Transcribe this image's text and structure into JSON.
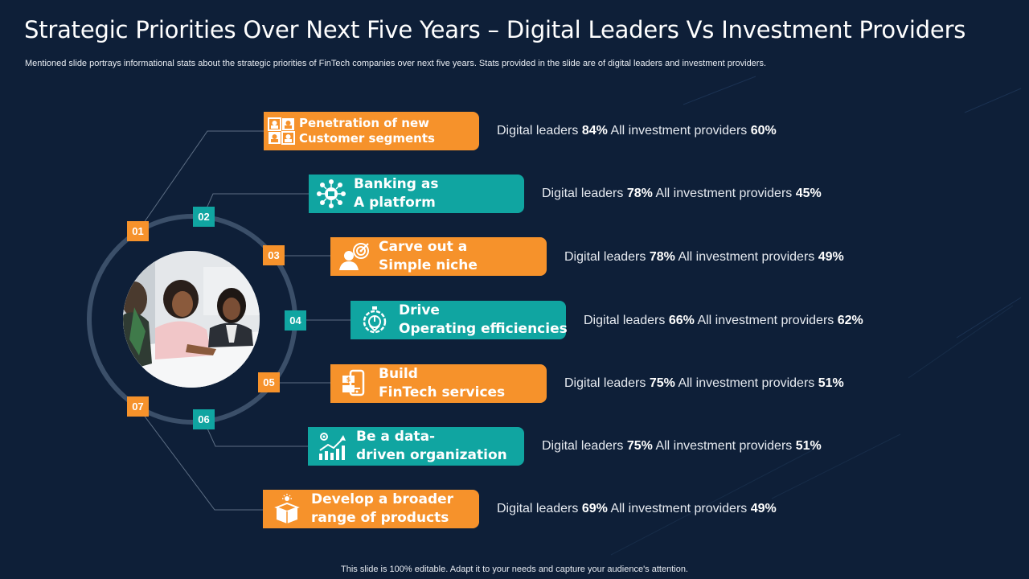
{
  "title": "Strategic Priorities Over Next Five Years – Digital Leaders Vs Investment Providers",
  "subtitle": "Mentioned slide portrays informational stats about the strategic priorities of FinTech companies over next five years. Stats provided in the slide are of digital leaders and investment providers.",
  "footer": "This slide is 100% editable. Adapt it to your needs and capture your audience's attention.",
  "stat_labels": {
    "leaders": "Digital leaders",
    "providers": "All investment  providers"
  },
  "colors": {
    "background": "#0e1f38",
    "orange": "#f6922b",
    "teal": "#10a5a1"
  },
  "items": [
    {
      "num": "01",
      "line1": "Penetration of new",
      "line2": "Customer segments",
      "leaders": "84%",
      "providers": "60%",
      "icon": "customer-segments-icon"
    },
    {
      "num": "02",
      "line1": "Banking as",
      "line2": "A platform",
      "leaders": "78%",
      "providers": "45%",
      "icon": "banking-network-icon"
    },
    {
      "num": "03",
      "line1": "Carve out a",
      "line2": "Simple niche",
      "leaders": "78%",
      "providers": "49%",
      "icon": "target-person-icon"
    },
    {
      "num": "04",
      "line1": "Drive",
      "line2": "Operating efficiencies",
      "leaders": "66%",
      "providers": "62%",
      "icon": "efficiency-gauge-icon"
    },
    {
      "num": "05",
      "line1": "Build",
      "line2": "FinTech services",
      "leaders": "75%",
      "providers": "51%",
      "icon": "fintech-services-icon"
    },
    {
      "num": "06",
      "line1": "Be a data-",
      "line2": "driven organization",
      "leaders": "75%",
      "providers": "51%",
      "icon": "growth-chart-icon"
    },
    {
      "num": "07",
      "line1": "Develop a broader",
      "line2": "range of products",
      "leaders": "69%",
      "providers": "49%",
      "icon": "product-box-icon"
    }
  ]
}
